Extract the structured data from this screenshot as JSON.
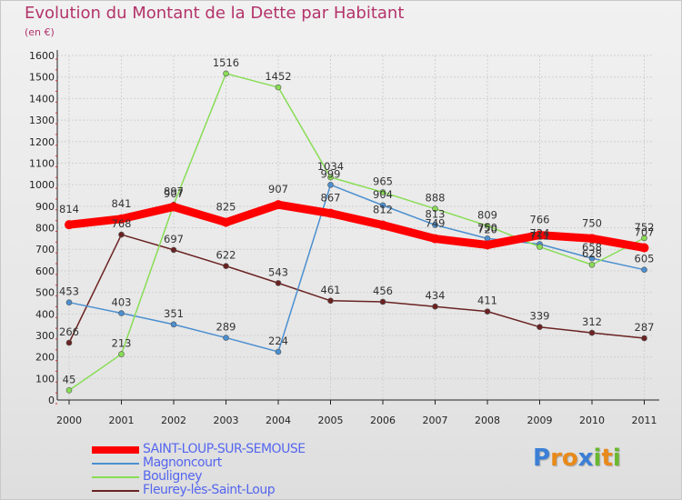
{
  "title": "Evolution du Montant de la Dette par Habitant",
  "subtitle": "(en €)",
  "logo": {
    "letters": [
      "P",
      "r",
      "o",
      "x",
      "i",
      "t",
      "i"
    ],
    "colors": [
      "#3b7fd6",
      "#e88a1a",
      "#e88a1a",
      "#3b7fd6",
      "#6ab82e",
      "#e88a1a",
      "#6ab82e"
    ]
  },
  "chart_data": {
    "type": "line",
    "title": "Evolution du Montant de la Dette par Habitant",
    "subtitle": "(en €)",
    "xlabel": "",
    "ylabel": "",
    "ylim": [
      0,
      1600
    ],
    "yticks": [
      0,
      100,
      200,
      300,
      400,
      500,
      600,
      700,
      800,
      900,
      1000,
      1100,
      1200,
      1300,
      1400,
      1500,
      1600
    ],
    "grid": true,
    "legend_position": "bottom-left",
    "categories": [
      "2000",
      "2001",
      "2002",
      "2003",
      "2004",
      "2005",
      "2006",
      "2007",
      "2008",
      "2009",
      "2010",
      "2011"
    ],
    "series": [
      {
        "name": "SAINT-LOUP-SUR-SEMOUSE",
        "color": "#ff0000",
        "bold": true,
        "values": [
          814,
          841,
          897,
          825,
          907,
          867,
          812,
          749,
          720,
          766,
          750,
          707
        ],
        "labels": [
          "814",
          "841",
          "897",
          "825",
          "907",
          "867",
          "812",
          "749",
          "720",
          "766",
          "750",
          "707"
        ]
      },
      {
        "name": "Magnoncourt",
        "color": "#4b8fd0",
        "bold": false,
        "values": [
          453,
          403,
          351,
          289,
          224,
          999,
          904,
          813,
          750,
          724,
          658,
          605
        ],
        "labels": [
          "453",
          "403",
          "351",
          "289",
          "224",
          "999",
          "904",
          "813",
          "750",
          "724",
          "658",
          "605"
        ]
      },
      {
        "name": "Bouligney",
        "color": "#88dd55",
        "bold": false,
        "values": [
          45,
          213,
          907,
          1516,
          1452,
          1034,
          965,
          888,
          809,
          711,
          628,
          752
        ],
        "labels": [
          "45",
          "213",
          "907",
          "1516",
          "1452",
          "1034",
          "965",
          "888",
          "809",
          "711",
          "628",
          "752"
        ]
      },
      {
        "name": "Fleurey-lès-Saint-Loup",
        "color": "#6b2222",
        "bold": false,
        "values": [
          266,
          768,
          697,
          622,
          543,
          461,
          456,
          434,
          411,
          339,
          312,
          287
        ],
        "labels": [
          "266",
          "768",
          "697",
          "622",
          "543",
          "461",
          "456",
          "434",
          "411",
          "339",
          "312",
          "287"
        ]
      }
    ]
  }
}
